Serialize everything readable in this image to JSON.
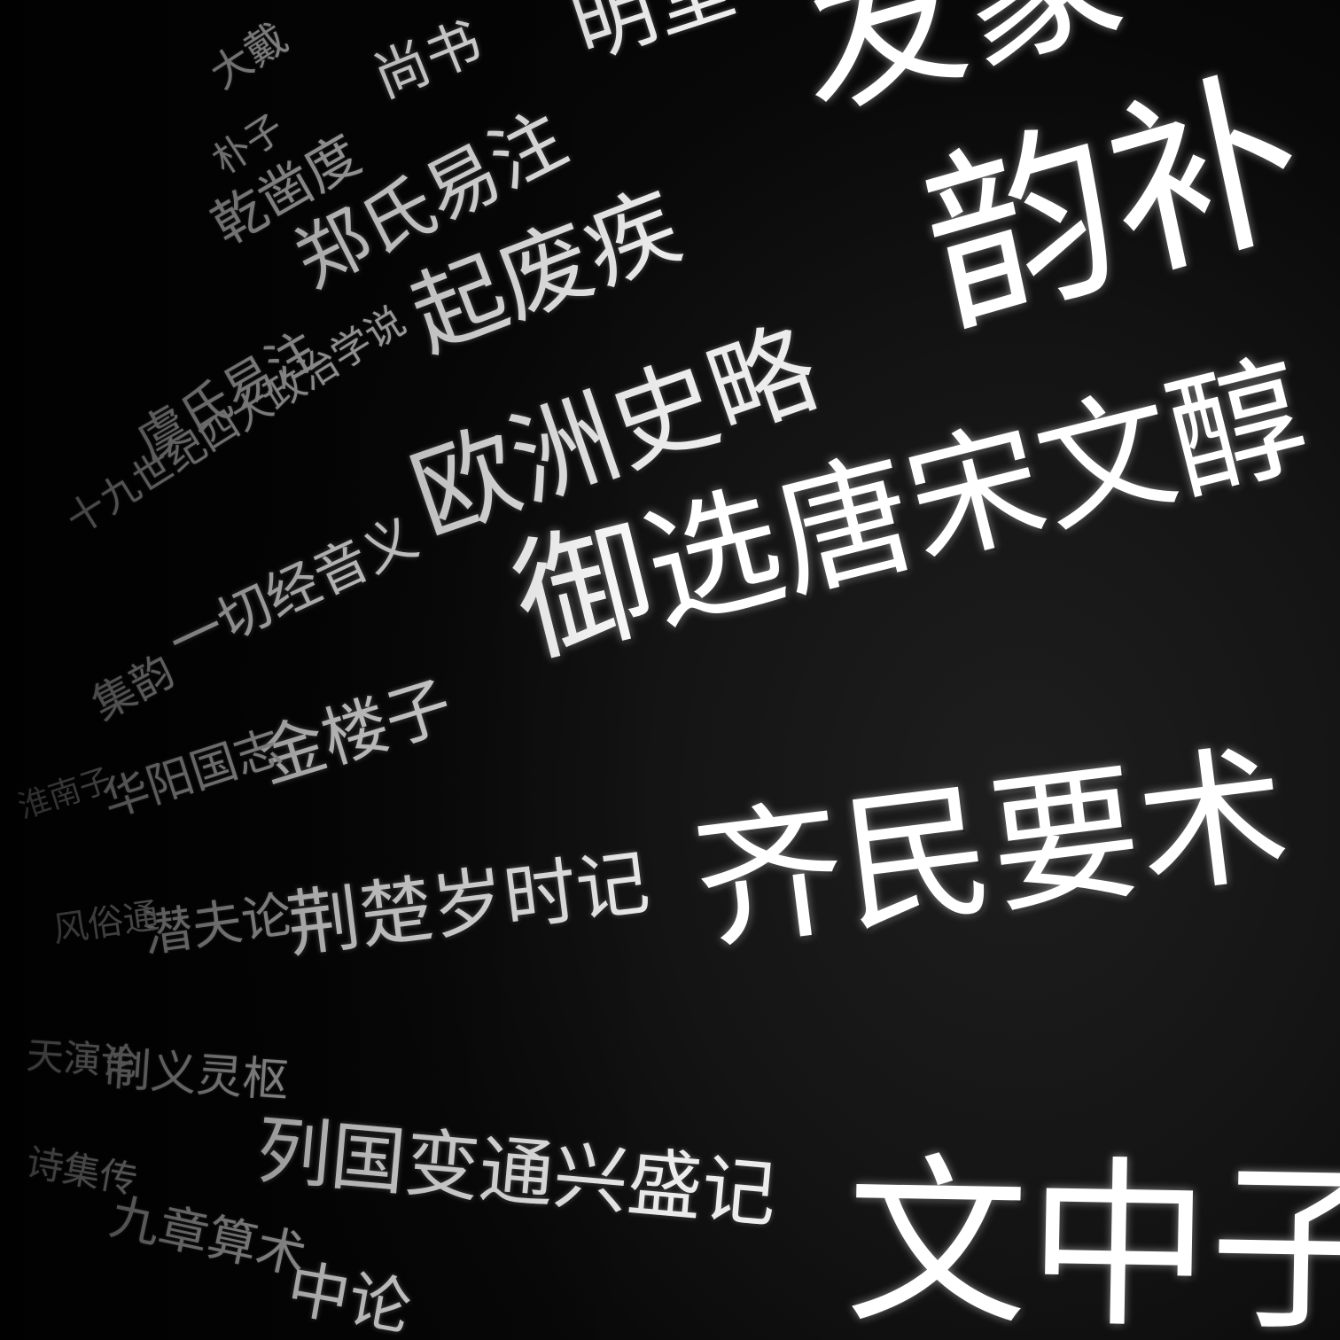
{
  "titles": {
    "fa_meng": "发蒙",
    "yun_bu": "韵补",
    "ming_tang": "明堂",
    "shang_shu": "尚书",
    "zheng_shi_yi_zhu": "郑氏易注",
    "qi_fei_ji": "起废疾",
    "qian_zao_du": "乾凿度",
    "pu_zi": "朴子",
    "da_dai": "大戴",
    "ou_zhou_shi_lue": "欧洲史略",
    "yu_xuan_tang_song_wen_chun": "御选唐宋文醇",
    "yu_shi_yi_zhu": "虞氏易注",
    "shi_jiu_shi_ji_si_da_zheng_zhi_xue_shuo": "十九世纪四大政治学说",
    "yi_qie_jing_yin_yi": "一切经音义",
    "ji_yun": "集韵",
    "jin_lou_zi": "金楼子",
    "hua_yang_guo_zhi": "华阳国志",
    "qi_min_yao_shu": "齐民要术",
    "jing_chu_sui_shi_ji": "荆楚岁时记",
    "qian_fu_lun": "潜夫论",
    "feng_su_tong": "风俗通",
    "lie_guo_bian_tong_xing_sheng_ji": "列国变通兴盛记",
    "zhi_yi_ling_shu": "制义灵枢",
    "tian_yan_lun": "天演论",
    "shi_ji_zhuan": "诗集传",
    "jiu_zhang_suan_shu": "九章算术",
    "zhong_lun": "中论",
    "wen_zhong_zi": "文中子",
    "huai_nan_zi": "淮南子"
  }
}
